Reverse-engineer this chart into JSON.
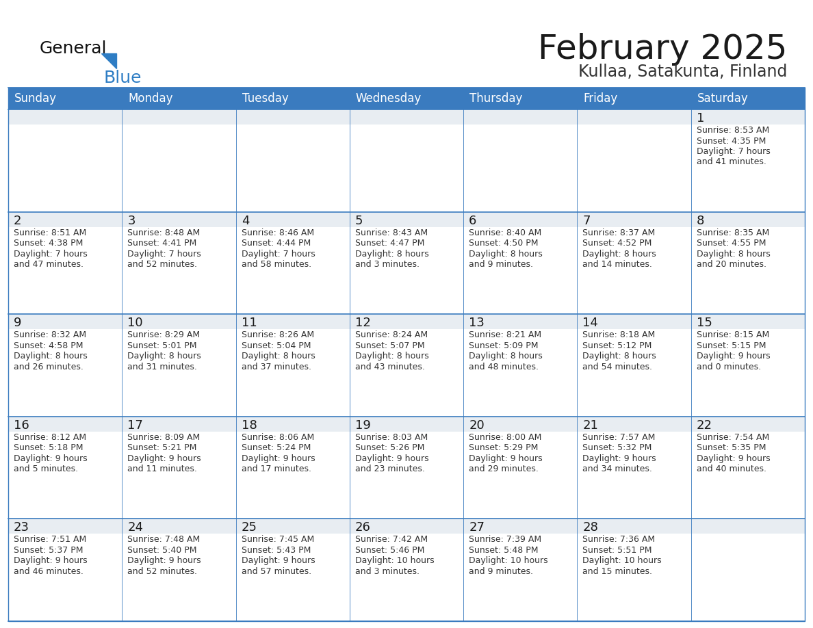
{
  "title": "February 2025",
  "subtitle": "Kullaa, Satakunta, Finland",
  "header_bg": "#3a7bbf",
  "header_text": "#FFFFFF",
  "cell_bg_gray": "#e8edf2",
  "cell_bg_white": "#FFFFFF",
  "border_color": "#3a7bbf",
  "day_names": [
    "Sunday",
    "Monday",
    "Tuesday",
    "Wednesday",
    "Thursday",
    "Friday",
    "Saturday"
  ],
  "title_color": "#1a1a1a",
  "subtitle_color": "#333333",
  "number_color": "#1a1a1a",
  "info_color": "#333333",
  "logo_general_color": "#111111",
  "logo_blue_color": "#2E7DC4",
  "logo_triangle_color": "#2E7DC4",
  "calendar": [
    [
      null,
      null,
      null,
      null,
      null,
      null,
      {
        "day": 1,
        "sunrise": "8:53 AM",
        "sunset": "4:35 PM",
        "daylight": "7 hours\nand 41 minutes."
      }
    ],
    [
      {
        "day": 2,
        "sunrise": "8:51 AM",
        "sunset": "4:38 PM",
        "daylight": "7 hours\nand 47 minutes."
      },
      {
        "day": 3,
        "sunrise": "8:48 AM",
        "sunset": "4:41 PM",
        "daylight": "7 hours\nand 52 minutes."
      },
      {
        "day": 4,
        "sunrise": "8:46 AM",
        "sunset": "4:44 PM",
        "daylight": "7 hours\nand 58 minutes."
      },
      {
        "day": 5,
        "sunrise": "8:43 AM",
        "sunset": "4:47 PM",
        "daylight": "8 hours\nand 3 minutes."
      },
      {
        "day": 6,
        "sunrise": "8:40 AM",
        "sunset": "4:50 PM",
        "daylight": "8 hours\nand 9 minutes."
      },
      {
        "day": 7,
        "sunrise": "8:37 AM",
        "sunset": "4:52 PM",
        "daylight": "8 hours\nand 14 minutes."
      },
      {
        "day": 8,
        "sunrise": "8:35 AM",
        "sunset": "4:55 PM",
        "daylight": "8 hours\nand 20 minutes."
      }
    ],
    [
      {
        "day": 9,
        "sunrise": "8:32 AM",
        "sunset": "4:58 PM",
        "daylight": "8 hours\nand 26 minutes."
      },
      {
        "day": 10,
        "sunrise": "8:29 AM",
        "sunset": "5:01 PM",
        "daylight": "8 hours\nand 31 minutes."
      },
      {
        "day": 11,
        "sunrise": "8:26 AM",
        "sunset": "5:04 PM",
        "daylight": "8 hours\nand 37 minutes."
      },
      {
        "day": 12,
        "sunrise": "8:24 AM",
        "sunset": "5:07 PM",
        "daylight": "8 hours\nand 43 minutes."
      },
      {
        "day": 13,
        "sunrise": "8:21 AM",
        "sunset": "5:09 PM",
        "daylight": "8 hours\nand 48 minutes."
      },
      {
        "day": 14,
        "sunrise": "8:18 AM",
        "sunset": "5:12 PM",
        "daylight": "8 hours\nand 54 minutes."
      },
      {
        "day": 15,
        "sunrise": "8:15 AM",
        "sunset": "5:15 PM",
        "daylight": "9 hours\nand 0 minutes."
      }
    ],
    [
      {
        "day": 16,
        "sunrise": "8:12 AM",
        "sunset": "5:18 PM",
        "daylight": "9 hours\nand 5 minutes."
      },
      {
        "day": 17,
        "sunrise": "8:09 AM",
        "sunset": "5:21 PM",
        "daylight": "9 hours\nand 11 minutes."
      },
      {
        "day": 18,
        "sunrise": "8:06 AM",
        "sunset": "5:24 PM",
        "daylight": "9 hours\nand 17 minutes."
      },
      {
        "day": 19,
        "sunrise": "8:03 AM",
        "sunset": "5:26 PM",
        "daylight": "9 hours\nand 23 minutes."
      },
      {
        "day": 20,
        "sunrise": "8:00 AM",
        "sunset": "5:29 PM",
        "daylight": "9 hours\nand 29 minutes."
      },
      {
        "day": 21,
        "sunrise": "7:57 AM",
        "sunset": "5:32 PM",
        "daylight": "9 hours\nand 34 minutes."
      },
      {
        "day": 22,
        "sunrise": "7:54 AM",
        "sunset": "5:35 PM",
        "daylight": "9 hours\nand 40 minutes."
      }
    ],
    [
      {
        "day": 23,
        "sunrise": "7:51 AM",
        "sunset": "5:37 PM",
        "daylight": "9 hours\nand 46 minutes."
      },
      {
        "day": 24,
        "sunrise": "7:48 AM",
        "sunset": "5:40 PM",
        "daylight": "9 hours\nand 52 minutes."
      },
      {
        "day": 25,
        "sunrise": "7:45 AM",
        "sunset": "5:43 PM",
        "daylight": "9 hours\nand 57 minutes."
      },
      {
        "day": 26,
        "sunrise": "7:42 AM",
        "sunset": "5:46 PM",
        "daylight": "10 hours\nand 3 minutes."
      },
      {
        "day": 27,
        "sunrise": "7:39 AM",
        "sunset": "5:48 PM",
        "daylight": "10 hours\nand 9 minutes."
      },
      {
        "day": 28,
        "sunrise": "7:36 AM",
        "sunset": "5:51 PM",
        "daylight": "10 hours\nand 15 minutes."
      },
      null
    ]
  ]
}
